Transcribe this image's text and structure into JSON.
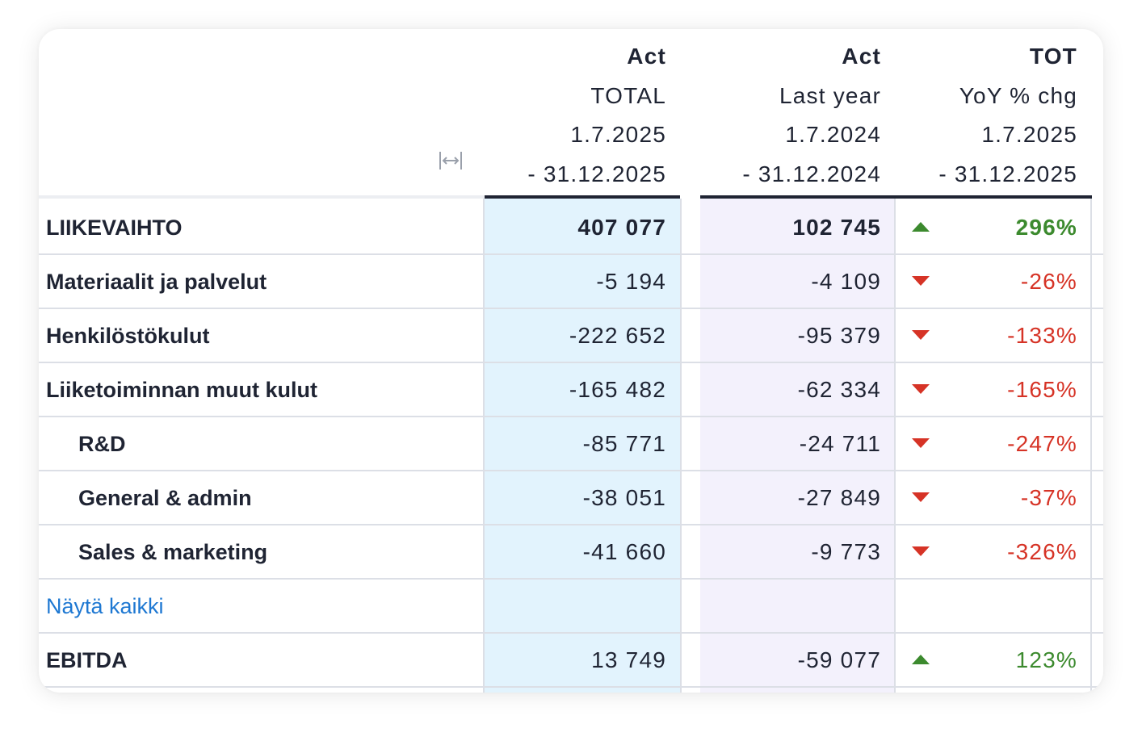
{
  "header": {
    "columns": [
      {
        "line1": "Act",
        "line2": "TOTAL",
        "line3": "1.7.2025",
        "line4": "- 31.12.2025"
      },
      {
        "line1": "Act",
        "line2": "Last year",
        "line3": "1.7.2024",
        "line4": "- 31.12.2024"
      },
      {
        "line1": "TOT",
        "line2": "YoY % chg",
        "line3": "1.7.2025",
        "line4": "- 31.12.2025"
      }
    ],
    "resize_icon": "column-resize-icon"
  },
  "colors": {
    "total_column_bg": "#e2f3fd",
    "last_year_column_bg": "#f3f1fc",
    "positive": "#3c8a2e",
    "negative": "#d63326",
    "link": "#1e78d2"
  },
  "rows": [
    {
      "label": "LIIKEVAIHTO",
      "total": "407 077",
      "last_year": "102 745",
      "trend": "up",
      "yoy": "296%"
    },
    {
      "label": "Materiaalit ja palvelut",
      "total": "-5 194",
      "last_year": "-4 109",
      "trend": "down",
      "yoy": "-26%"
    },
    {
      "label": "Henkilöstökulut",
      "total": "-222 652",
      "last_year": "-95 379",
      "trend": "down",
      "yoy": "-133%"
    },
    {
      "label": "Liiketoiminnan muut kulut",
      "total": "-165 482",
      "last_year": "-62 334",
      "trend": "down",
      "yoy": "-165%"
    },
    {
      "label": "R&D",
      "total": "-85 771",
      "last_year": "-24 711",
      "trend": "down",
      "yoy": "-247%"
    },
    {
      "label": "General & admin",
      "total": "-38 051",
      "last_year": "-27 849",
      "trend": "down",
      "yoy": "-37%"
    },
    {
      "label": "Sales & marketing",
      "total": "-41 660",
      "last_year": "-9 773",
      "trend": "down",
      "yoy": "-326%"
    },
    {
      "label": "Näytä kaikki",
      "total": "",
      "last_year": "",
      "trend": "",
      "yoy": ""
    },
    {
      "label": "EBITDA",
      "total": "13 749",
      "last_year": "-59 077",
      "trend": "up",
      "yoy": "123%"
    }
  ]
}
